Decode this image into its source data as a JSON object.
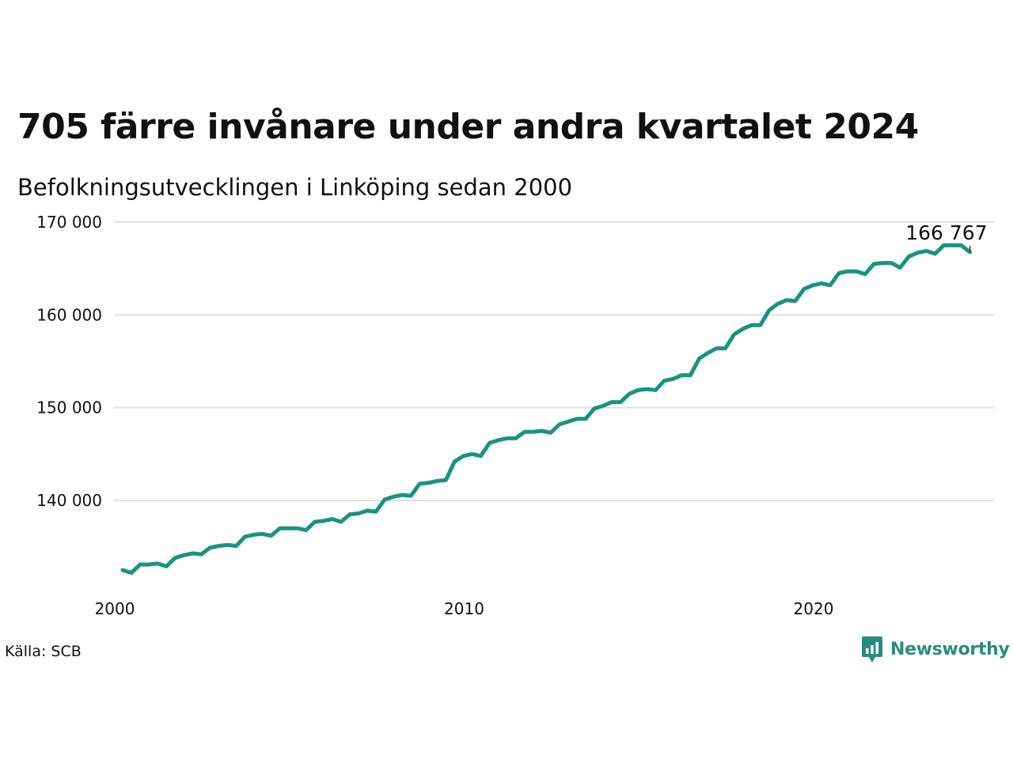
{
  "title": "705 färre invånare under andra kvartalet 2024",
  "subtitle": "Befolkningsutvecklingen i Linköping sedan 2000",
  "source": "Källa: SCB",
  "brand": {
    "name": "Newsworthy",
    "icon": "newsworthy-logo-icon",
    "color": "#2a8b7f"
  },
  "colors": {
    "line": "#1a9380",
    "grid": "#e0e0e0",
    "text": "#111111"
  },
  "chart_data": {
    "type": "line",
    "title": "705 färre invånare under andra kvartalet 2024",
    "subtitle": "Befolkningsutvecklingen i Linköping sedan 2000",
    "xlabel": "",
    "ylabel": "",
    "xlim": [
      2000,
      2025
    ],
    "ylim": [
      131000,
      171000
    ],
    "grid": "horizontal",
    "legend": "none",
    "x_ticks": [
      2000,
      2010,
      2020
    ],
    "x_tick_labels": [
      "2000",
      "2010",
      "2020"
    ],
    "y_ticks": [
      140000,
      150000,
      160000,
      170000
    ],
    "y_tick_labels": [
      "140 000",
      "150 000",
      "160 000",
      "170 000"
    ],
    "annotation": {
      "text": "166 767",
      "x": 2024.25,
      "y": 166767
    },
    "series": [
      {
        "x": [
          2000.0,
          2000.25,
          2000.5,
          2000.75,
          2001.0,
          2001.25,
          2001.5,
          2001.75,
          2002.0,
          2002.25,
          2002.5,
          2002.75,
          2003.0,
          2003.25,
          2003.5,
          2003.75,
          2004.0,
          2004.25,
          2004.5,
          2004.75,
          2005.0,
          2005.25,
          2005.5,
          2005.75,
          2006.0,
          2006.25,
          2006.5,
          2006.75,
          2007.0,
          2007.25,
          2007.5,
          2007.75,
          2008.0,
          2008.25,
          2008.5,
          2008.75,
          2009.0,
          2009.25,
          2009.5,
          2009.75,
          2010.0,
          2010.25,
          2010.5,
          2010.75,
          2011.0,
          2011.25,
          2011.5,
          2011.75,
          2012.0,
          2012.25,
          2012.5,
          2012.75,
          2013.0,
          2013.25,
          2013.5,
          2013.75,
          2014.0,
          2014.25,
          2014.5,
          2014.75,
          2015.0,
          2015.25,
          2015.5,
          2015.75,
          2016.0,
          2016.25,
          2016.5,
          2016.75,
          2017.0,
          2017.25,
          2017.5,
          2017.75,
          2018.0,
          2018.25,
          2018.5,
          2018.75,
          2019.0,
          2019.25,
          2019.5,
          2019.75,
          2020.0,
          2020.25,
          2020.5,
          2020.75,
          2021.0,
          2021.25,
          2021.5,
          2021.75,
          2022.0,
          2022.25,
          2022.5,
          2022.75,
          2023.0,
          2023.25,
          2023.5,
          2023.75,
          2024.0,
          2024.25
        ],
        "values": [
          132500,
          132200,
          133100,
          133100,
          133200,
          132900,
          133800,
          134100,
          134300,
          134200,
          134900,
          135100,
          135200,
          135100,
          136100,
          136300,
          136400,
          136200,
          137000,
          137000,
          137000,
          136800,
          137700,
          137800,
          138000,
          137700,
          138500,
          138600,
          138900,
          138800,
          140100,
          140400,
          140600,
          140500,
          141800,
          141900,
          142100,
          142200,
          144200,
          144800,
          145000,
          144800,
          146200,
          146500,
          146700,
          146700,
          147400,
          147400,
          147500,
          147300,
          148200,
          148500,
          148800,
          148800,
          149900,
          150200,
          150600,
          150600,
          151500,
          151900,
          152000,
          151900,
          152900,
          153100,
          153500,
          153500,
          155300,
          155900,
          156400,
          156400,
          157900,
          158500,
          158900,
          158900,
          160500,
          161200,
          161600,
          161500,
          162800,
          163200,
          163400,
          163200,
          164500,
          164700,
          164700,
          164400,
          165500,
          165600,
          165600,
          165100,
          166300,
          166700,
          166900,
          166600,
          167500,
          167500,
          167500,
          166767
        ]
      }
    ]
  }
}
